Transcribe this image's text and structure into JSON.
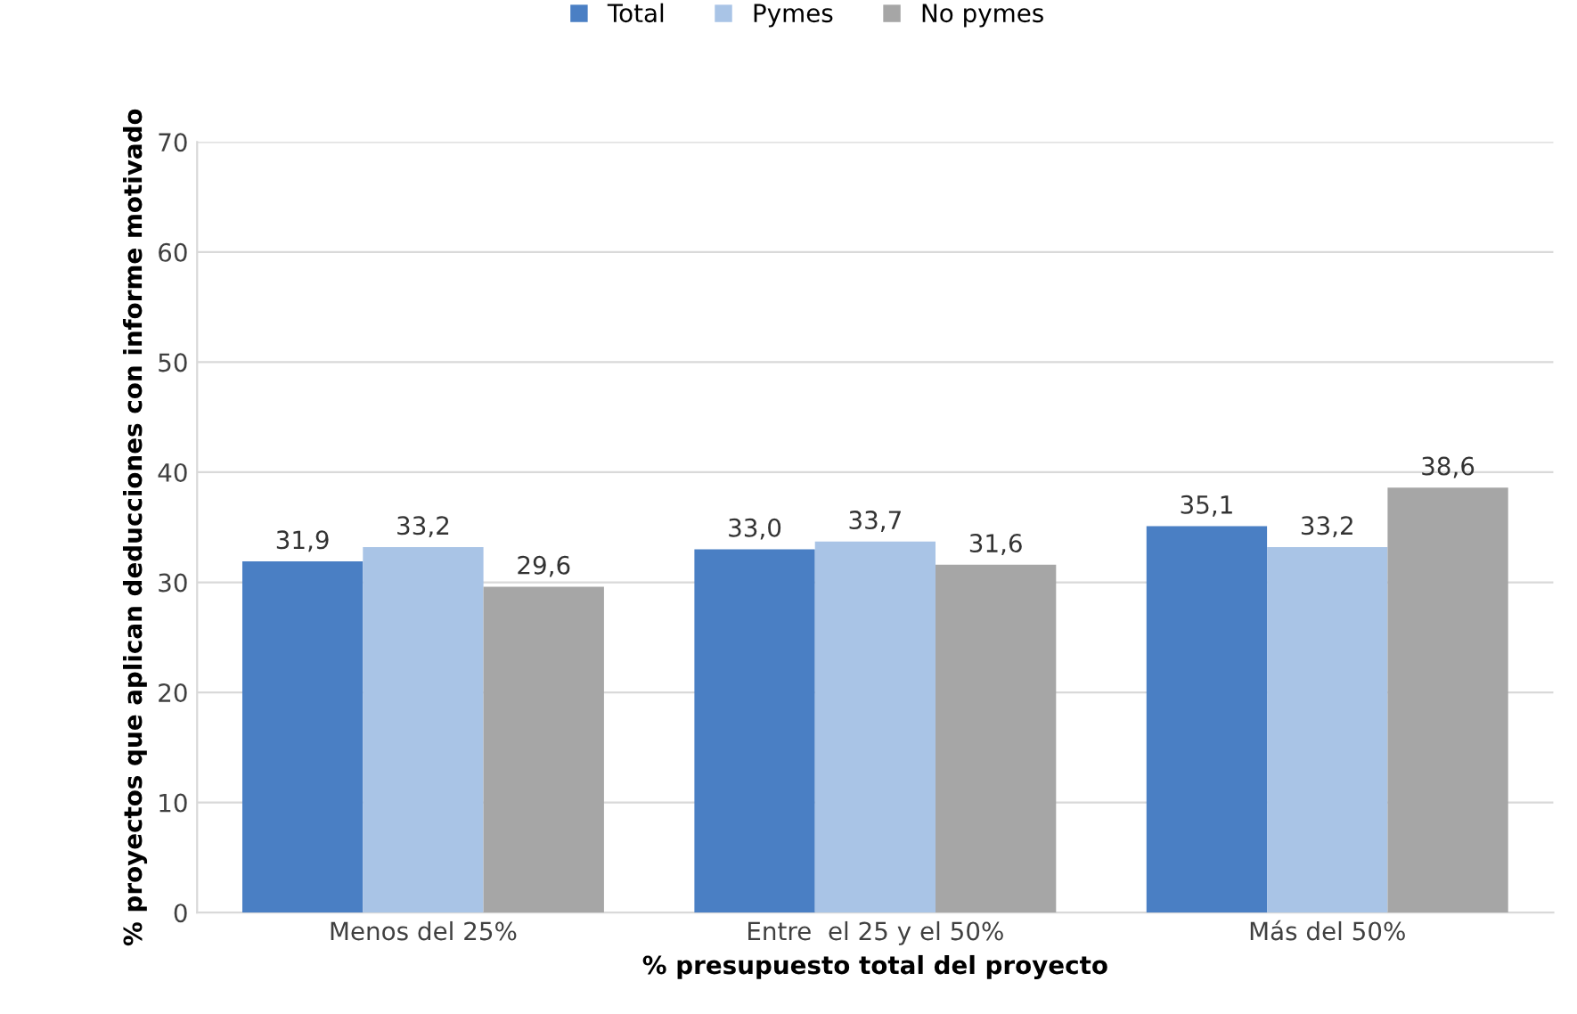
{
  "chart_data": {
    "type": "bar",
    "xlabel": "% presupuesto total del proyecto",
    "ylabel": "% proyectos que aplican deducciones con informe motivado",
    "categories": [
      "Menos del 25%",
      "Entre  el 25 y el 50%",
      "Más del 50%"
    ],
    "series": [
      {
        "name": "Total",
        "color": "#4a7fc4",
        "values": [
          31.9,
          33.0,
          35.1
        ],
        "value_labels": [
          "31,9",
          "33,0",
          "35,1"
        ]
      },
      {
        "name": "Pymes",
        "color": "#a9c4e6",
        "values": [
          33.2,
          33.7,
          33.2
        ],
        "value_labels": [
          "33,2",
          "33,7",
          "33,2"
        ]
      },
      {
        "name": "No pymes",
        "color": "#a6a6a6",
        "values": [
          29.6,
          31.6,
          38.6
        ],
        "value_labels": [
          "29,6",
          "31,6",
          "38,6"
        ]
      }
    ],
    "ylim": [
      0,
      70
    ],
    "yticks": [
      0,
      10,
      20,
      30,
      40,
      50,
      60,
      70
    ],
    "grid": "y",
    "legend": "top"
  }
}
